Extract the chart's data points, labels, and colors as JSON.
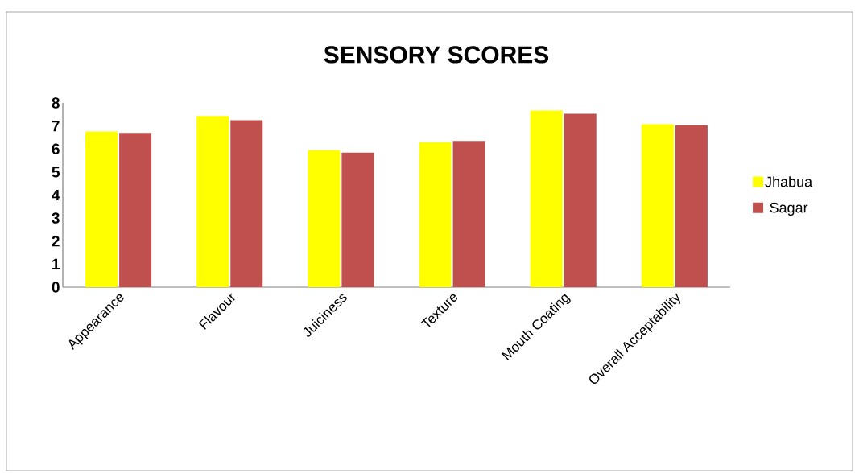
{
  "chart_data": {
    "type": "bar",
    "title": "SENSORY SCORES",
    "categories": [
      "Appearance",
      "Flavour",
      "Juiciness",
      "Texture",
      "Mouth Coating",
      "Overall Acceptability"
    ],
    "series": [
      {
        "name": "Jhabua",
        "color": "#ffff00",
        "values": [
          6.76,
          7.43,
          5.95,
          6.3,
          7.67,
          7.07
        ]
      },
      {
        "name": "Sagar",
        "color": "#c0504d",
        "values": [
          6.7,
          7.25,
          5.84,
          6.35,
          7.53,
          7.03
        ]
      }
    ],
    "ylim": [
      0,
      8
    ],
    "yticks": [
      0,
      1,
      2,
      3,
      4,
      5,
      6,
      7,
      8
    ],
    "grid": false,
    "legend": "right"
  }
}
